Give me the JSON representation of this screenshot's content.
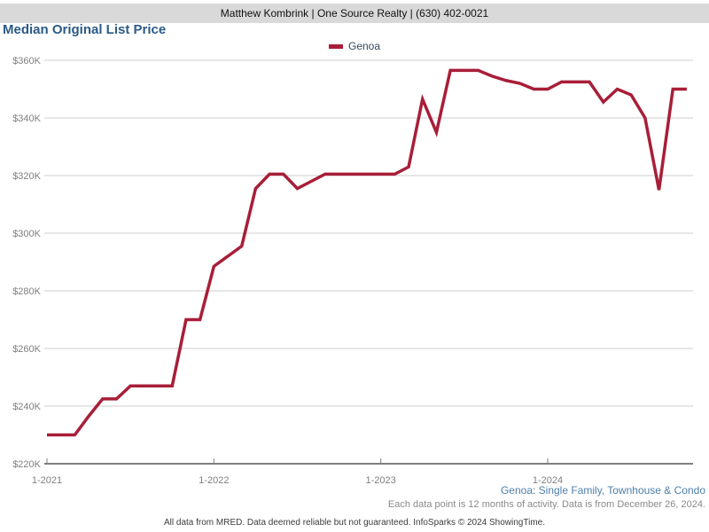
{
  "header": {
    "agent_info": "Matthew Kombrink | One Source Realty | (630) 402-0021"
  },
  "page_title": "Median Original List Price",
  "legend": {
    "series_label": "Genoa"
  },
  "footnotes": {
    "series_scope": "Genoa: Single Family, Townhouse & Condo",
    "data_note": "Each data point is 12 months of activity. Data is from December 26, 2024.",
    "disclaimer": "All data from MRED. Data deemed reliable but not guaranteed. InfoSparks © 2024 ShowingTime."
  },
  "colors": {
    "series_line": "#A81E38",
    "title_text": "#2B5A87",
    "legend_text": "#33475C",
    "scope_text": "#4E7FAB",
    "note_text": "#8A8A8A",
    "axis_text": "#7F7F7F",
    "header_bar_bg": "#D9D9D9",
    "gridline": "#CCCCCC",
    "axis_line": "#7F7F7F"
  },
  "chart_data": {
    "type": "line",
    "title": "Median Original List Price",
    "x_unit": "month",
    "x": [
      "1-2021",
      "2-2021",
      "3-2021",
      "4-2021",
      "5-2021",
      "6-2021",
      "7-2021",
      "8-2021",
      "9-2021",
      "10-2021",
      "11-2021",
      "12-2021",
      "1-2022",
      "2-2022",
      "3-2022",
      "4-2022",
      "5-2022",
      "6-2022",
      "7-2022",
      "8-2022",
      "9-2022",
      "10-2022",
      "11-2022",
      "12-2022",
      "1-2023",
      "2-2023",
      "3-2023",
      "4-2023",
      "5-2023",
      "6-2023",
      "7-2023",
      "8-2023",
      "9-2023",
      "10-2023",
      "11-2023",
      "12-2023",
      "1-2024",
      "2-2024",
      "3-2024",
      "4-2024",
      "5-2024",
      "6-2024",
      "7-2024",
      "8-2024",
      "9-2024",
      "10-2024",
      "11-2024"
    ],
    "x_tick_labels": [
      "1-2021",
      "1-2022",
      "1-2023",
      "1-2024"
    ],
    "x_tick_indices": [
      0,
      12,
      24,
      36
    ],
    "y_unit": "USD thousands",
    "ylabel": "",
    "xlabel": "",
    "y_ticks": [
      220,
      240,
      260,
      280,
      300,
      320,
      340,
      360
    ],
    "y_tick_labels": [
      "$220K",
      "$240K",
      "$260K",
      "$280K",
      "$300K",
      "$320K",
      "$340K",
      "$360K"
    ],
    "ylim": [
      220,
      368
    ],
    "grid": "horizontal",
    "legend_position": "top-center",
    "series": [
      {
        "name": "Genoa",
        "values": [
          230,
          230,
          230,
          236.5,
          242.5,
          242.5,
          247,
          247,
          247,
          247,
          270,
          270,
          288.5,
          292,
          295.5,
          315.5,
          320.5,
          320.5,
          315.5,
          318,
          320.5,
          320.5,
          320.5,
          320.5,
          320.5,
          320.5,
          323,
          346.5,
          335,
          356.5,
          356.5,
          356.5,
          354.5,
          353,
          352,
          350,
          350,
          352.5,
          352.5,
          352.5,
          345.5,
          350,
          348,
          340,
          315,
          350,
          350
        ]
      }
    ]
  }
}
